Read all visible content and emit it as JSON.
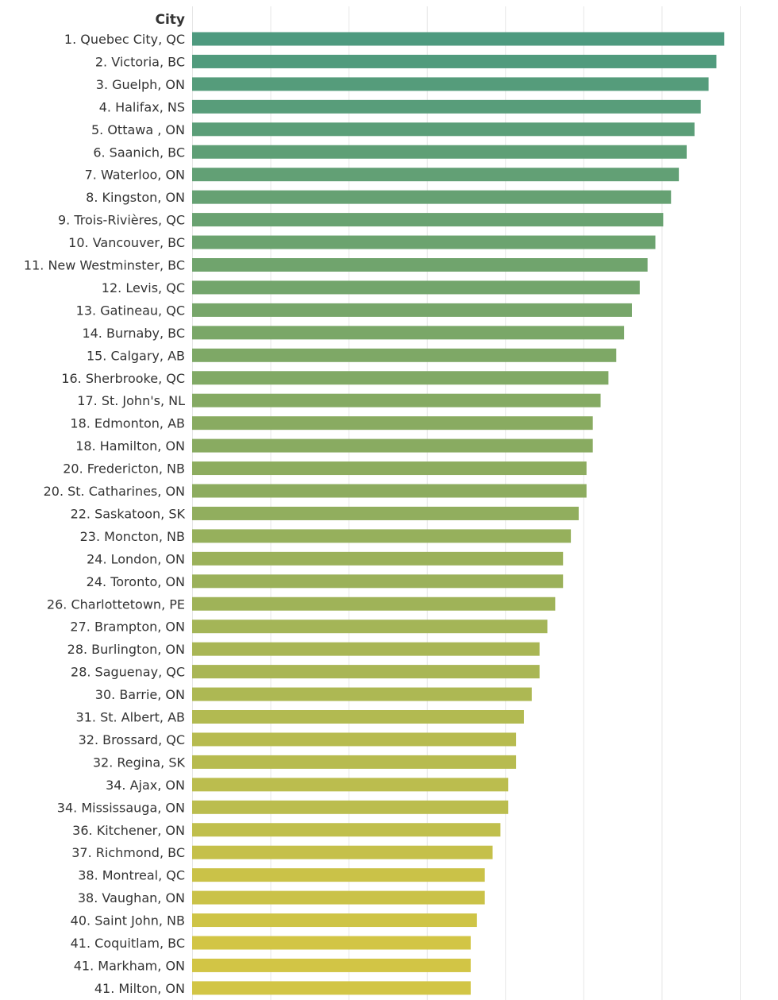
{
  "chart_data": {
    "type": "bar",
    "orientation": "horizontal",
    "row_header": "City",
    "categories": [
      "1. Quebec City, QC",
      "2. Victoria, BC",
      "3. Guelph, ON",
      "4. Halifax, NS",
      "5. Ottawa , ON",
      "6. Saanich, BC",
      "7. Waterloo, ON",
      "8. Kingston, ON",
      "9. Trois-Rivières, QC",
      "10. Vancouver, BC",
      "11. New Westminster, BC",
      "12. Levis, QC",
      "13. Gatineau, QC",
      "14. Burnaby, BC",
      "15. Calgary, AB",
      "16. Sherbrooke, QC",
      "17. St. John's, NL",
      "18. Edmonton, AB",
      "18. Hamilton, ON",
      "20. Fredericton, NB",
      "20. St. Catharines, ON",
      "22. Saskatoon, SK",
      "23. Moncton, NB",
      "24. London, ON",
      "24. Toronto, ON",
      "26. Charlottetown, PE",
      "27. Brampton, ON",
      "28. Burlington, ON",
      "28. Saguenay, QC",
      "30. Barrie, ON",
      "31. St. Albert, AB",
      "32. Brossard, QC",
      "32. Regina, SK",
      "34. Ajax, ON",
      "34. Mississauga, ON",
      "36. Kitchener, ON",
      "37. Richmond, BC",
      "38. Montreal, QC",
      "38. Vaughan, ON",
      "40. Saint John, NB",
      "41. Coquitlam, BC",
      "41. Markham, ON",
      "41. Milton, ON"
    ],
    "values": [
      68.0,
      67.0,
      66.0,
      65.0,
      64.2,
      63.2,
      62.2,
      61.2,
      60.2,
      59.2,
      58.2,
      57.2,
      56.2,
      55.2,
      54.2,
      53.2,
      52.2,
      51.2,
      51.2,
      50.4,
      50.4,
      49.4,
      48.4,
      47.4,
      47.4,
      46.4,
      45.4,
      44.4,
      44.4,
      43.4,
      42.4,
      41.4,
      41.4,
      40.4,
      40.4,
      39.4,
      38.4,
      37.4,
      37.4,
      36.4,
      35.6,
      35.6,
      35.6
    ],
    "xlim": [
      0,
      70
    ],
    "grid": true,
    "colors": {
      "high": "#4e9a7f",
      "mid": "#86aa62",
      "low": "#d2c545",
      "text": "#333333",
      "grid": "#e6e6e6"
    }
  }
}
